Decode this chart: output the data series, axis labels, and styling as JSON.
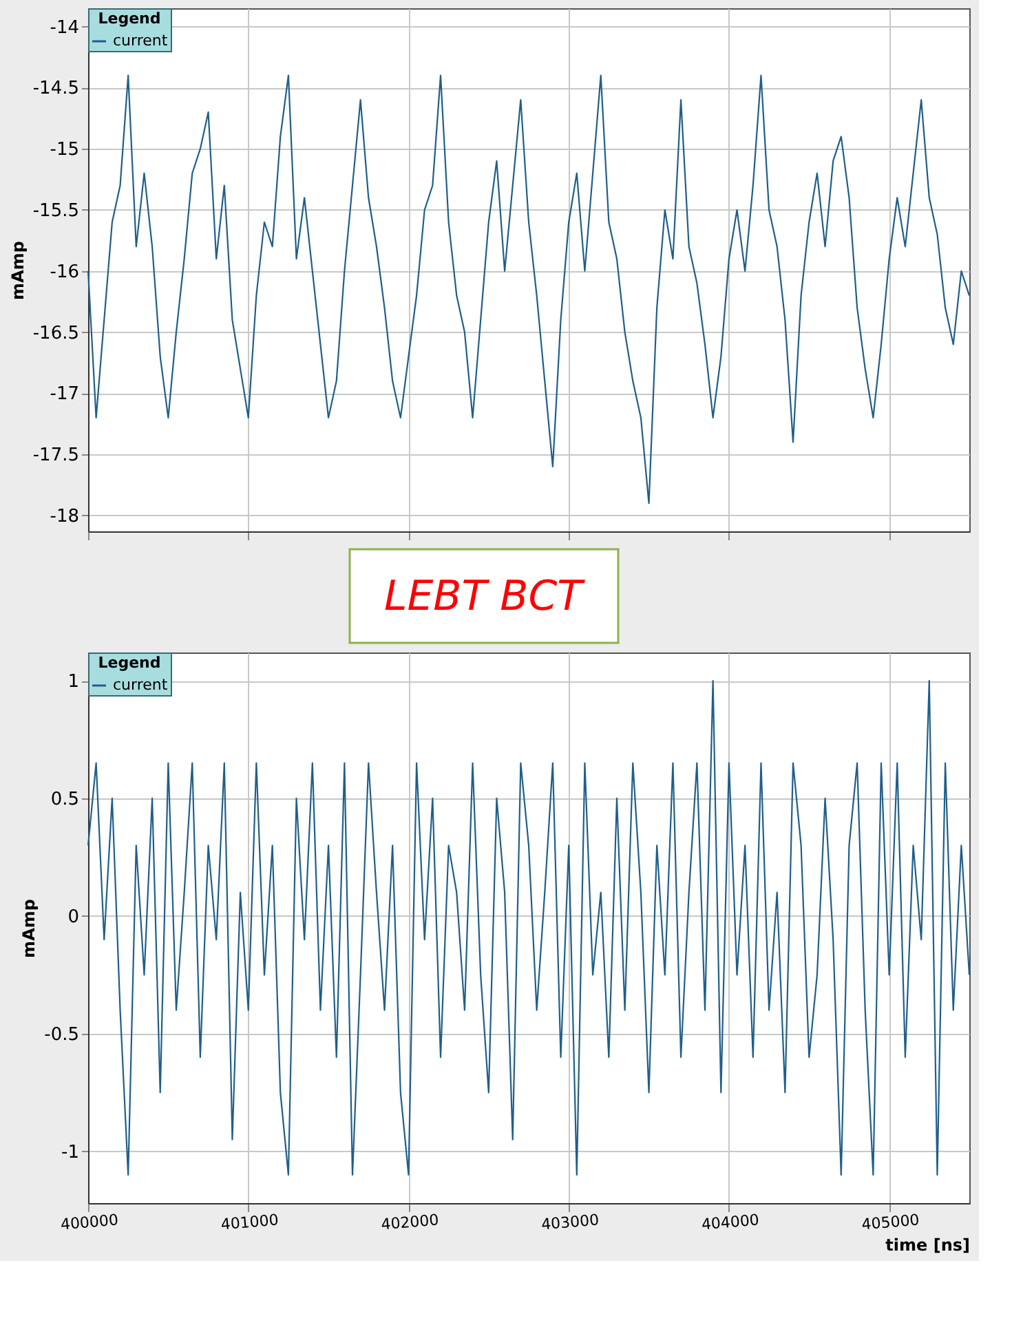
{
  "chart_data": [
    {
      "type": "line",
      "ylabel": "mAmp",
      "legend_title": "Legend",
      "legend": "top left",
      "grid": true,
      "tick_labels": "y",
      "xlim": [
        400000,
        405500
      ],
      "xticks": [
        400000,
        401000,
        402000,
        403000,
        404000,
        405000
      ],
      "ylim": [
        -18.13,
        -13.85
      ],
      "yticks": [
        -18,
        -17.5,
        -17,
        -16.5,
        -16,
        -15.5,
        -15,
        -14.5,
        -14
      ],
      "annotations": [
        "LEBT BCT"
      ],
      "x": [
        400000,
        400050,
        400100,
        400150,
        400200,
        400250,
        400300,
        400350,
        400400,
        400450,
        400500,
        400550,
        400600,
        400650,
        400700,
        400750,
        400800,
        400850,
        400900,
        400950,
        401000,
        401050,
        401100,
        401150,
        401200,
        401250,
        401300,
        401350,
        401400,
        401450,
        401500,
        401550,
        401600,
        401650,
        401700,
        401750,
        401800,
        401850,
        401900,
        401950,
        402000,
        402050,
        402100,
        402150,
        402200,
        402250,
        402300,
        402350,
        402400,
        402450,
        402500,
        402550,
        402600,
        402650,
        402700,
        402750,
        402800,
        402850,
        402900,
        402950,
        403000,
        403050,
        403100,
        403150,
        403200,
        403250,
        403300,
        403350,
        403400,
        403450,
        403500,
        403550,
        403600,
        403650,
        403700,
        403750,
        403800,
        403850,
        403900,
        403950,
        404000,
        404050,
        404100,
        404150,
        404200,
        404250,
        404300,
        404350,
        404400,
        404450,
        404500,
        404550,
        404600,
        404650,
        404700,
        404750,
        404800,
        404850,
        404900,
        404950,
        405000,
        405050,
        405100,
        405150,
        405200,
        405250,
        405300,
        405350,
        405400,
        405450,
        405500
      ],
      "series": [
        {
          "name": "current",
          "color": "#1f5f8b",
          "values": [
            -16.0,
            -17.2,
            -16.4,
            -15.6,
            -15.3,
            -14.4,
            -15.8,
            -15.2,
            -15.8,
            -16.7,
            -17.2,
            -16.5,
            -15.9,
            -15.2,
            -15.0,
            -14.7,
            -15.9,
            -15.3,
            -16.4,
            -16.8,
            -17.2,
            -16.2,
            -15.6,
            -15.8,
            -14.9,
            -14.4,
            -15.9,
            -15.4,
            -16.0,
            -16.6,
            -17.2,
            -16.9,
            -16.0,
            -15.3,
            -14.6,
            -15.4,
            -15.8,
            -16.3,
            -16.9,
            -17.2,
            -16.7,
            -16.2,
            -15.5,
            -15.3,
            -14.4,
            -15.6,
            -16.2,
            -16.5,
            -17.2,
            -16.4,
            -15.6,
            -15.1,
            -16.0,
            -15.3,
            -14.6,
            -15.6,
            -16.2,
            -16.9,
            -17.6,
            -16.4,
            -15.6,
            -15.2,
            -16.0,
            -15.2,
            -14.4,
            -15.6,
            -15.9,
            -16.5,
            -16.9,
            -17.2,
            -17.9,
            -16.3,
            -15.5,
            -15.9,
            -14.6,
            -15.8,
            -16.1,
            -16.6,
            -17.2,
            -16.7,
            -15.9,
            -15.5,
            -16.0,
            -15.3,
            -14.4,
            -15.5,
            -15.8,
            -16.4,
            -17.4,
            -16.2,
            -15.6,
            -15.2,
            -15.8,
            -15.1,
            -14.9,
            -15.4,
            -16.3,
            -16.8,
            -17.2,
            -16.6,
            -15.9,
            -15.4,
            -15.8,
            -15.2,
            -14.6,
            -15.4,
            -15.7,
            -16.3,
            -16.6,
            -16.0,
            -16.2
          ]
        }
      ]
    },
    {
      "type": "line",
      "ylabel": "mAmp",
      "xlabel": "time [ns]",
      "legend_title": "Legend",
      "legend": "top left",
      "grid": true,
      "xlim": [
        400000,
        405500
      ],
      "xticks": [
        400000,
        401000,
        402000,
        403000,
        404000,
        405000
      ],
      "ylim": [
        -1.22,
        1.12
      ],
      "yticks": [
        -1,
        -0.5,
        0,
        0.5,
        1
      ],
      "x": [
        400000,
        400050,
        400100,
        400150,
        400200,
        400250,
        400300,
        400350,
        400400,
        400450,
        400500,
        400550,
        400600,
        400650,
        400700,
        400750,
        400800,
        400850,
        400900,
        400950,
        401000,
        401050,
        401100,
        401150,
        401200,
        401250,
        401300,
        401350,
        401400,
        401450,
        401500,
        401550,
        401600,
        401650,
        401700,
        401750,
        401800,
        401850,
        401900,
        401950,
        402000,
        402050,
        402100,
        402150,
        402200,
        402250,
        402300,
        402350,
        402400,
        402450,
        402500,
        402550,
        402600,
        402650,
        402700,
        402750,
        402800,
        402850,
        402900,
        402950,
        403000,
        403050,
        403100,
        403150,
        403200,
        403250,
        403300,
        403350,
        403400,
        403450,
        403500,
        403550,
        403600,
        403650,
        403700,
        403750,
        403800,
        403850,
        403900,
        403950,
        404000,
        404050,
        404100,
        404150,
        404200,
        404250,
        404300,
        404350,
        404400,
        404450,
        404500,
        404550,
        404600,
        404650,
        404700,
        404750,
        404800,
        404850,
        404900,
        404950,
        405000,
        405050,
        405100,
        405150,
        405200,
        405250,
        405300,
        405350,
        405400,
        405450,
        405500
      ],
      "series": [
        {
          "name": "current",
          "color": "#1f5f8b",
          "values": [
            0.3,
            0.65,
            -0.1,
            0.5,
            -0.4,
            -1.1,
            0.3,
            -0.25,
            0.5,
            -0.75,
            0.65,
            -0.4,
            0.1,
            0.65,
            -0.6,
            0.3,
            -0.1,
            0.65,
            -0.95,
            0.1,
            -0.4,
            0.65,
            -0.25,
            0.3,
            -0.75,
            -1.1,
            0.5,
            -0.1,
            0.65,
            -0.4,
            0.3,
            -0.6,
            0.65,
            -1.1,
            -0.25,
            0.65,
            0.1,
            -0.4,
            0.3,
            -0.75,
            -1.1,
            0.65,
            -0.1,
            0.5,
            -0.6,
            0.3,
            0.1,
            -0.4,
            0.65,
            -0.25,
            -0.75,
            0.5,
            0.1,
            -0.95,
            0.65,
            0.3,
            -0.4,
            0.1,
            0.65,
            -0.6,
            0.3,
            -1.1,
            0.65,
            -0.25,
            0.1,
            -0.6,
            0.5,
            -0.4,
            0.65,
            0.1,
            -0.75,
            0.3,
            -0.25,
            0.65,
            -0.6,
            0.1,
            0.65,
            -0.4,
            1.0,
            -0.75,
            0.65,
            -0.25,
            0.3,
            -0.6,
            0.65,
            -0.4,
            0.1,
            -0.75,
            0.65,
            0.3,
            -0.6,
            -0.25,
            0.5,
            -0.1,
            -1.1,
            0.3,
            0.65,
            -0.4,
            -1.1,
            0.65,
            -0.25,
            0.65,
            -0.6,
            0.3,
            -0.1,
            1.0,
            -1.1,
            0.65,
            -0.4,
            0.3,
            -0.25
          ]
        }
      ]
    }
  ]
}
